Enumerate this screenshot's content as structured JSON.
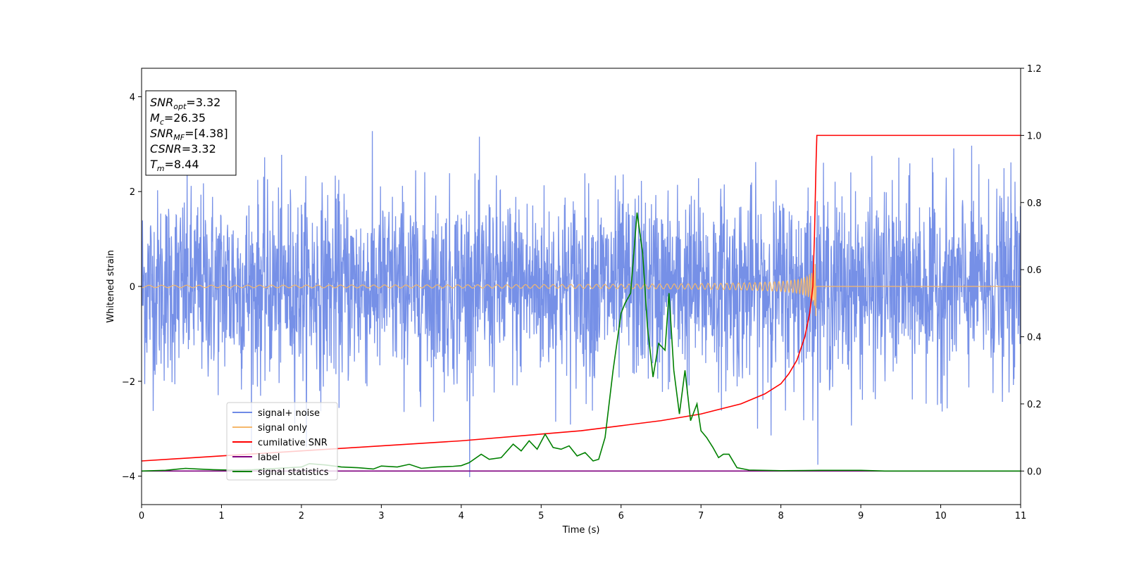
{
  "chart_data": {
    "type": "line",
    "xlabel": "Time (s)",
    "ylabel": "Whitened strain",
    "xlim": [
      0,
      11
    ],
    "ylim_left": [
      -4.6,
      4.6
    ],
    "ylim_right": [
      -0.1,
      1.2
    ],
    "x_ticks": [
      "0",
      "1",
      "2",
      "3",
      "4",
      "5",
      "6",
      "7",
      "8",
      "9",
      "10",
      "11"
    ],
    "y_ticks_left": [
      "4",
      "2",
      "0",
      "−2",
      "−4"
    ],
    "y_ticks_right": [
      "1.2",
      "1.0",
      "0.8",
      "0.6",
      "0.4",
      "0.2",
      "0.0"
    ],
    "grid": false,
    "legend_position": "lower-left",
    "annotation": [
      {
        "main": "SNR",
        "sub": "opt",
        "value": "=3.32"
      },
      {
        "main": "M",
        "sub": "c",
        "value": "=26.35"
      },
      {
        "main": "SNR",
        "sub": "MF",
        "value": "=[4.38]"
      },
      {
        "main": "CSNR",
        "sub": "",
        "value": "=3.32"
      },
      {
        "main": "T",
        "sub": "m",
        "value": "=8.44"
      }
    ],
    "series": [
      {
        "name": "signal+ noise",
        "color": "#6f8ae6",
        "axis": "left",
        "kind": "noise",
        "std": 1.0,
        "range_min": -4.15,
        "range_max": 4.18
      },
      {
        "name": "signal only",
        "color": "#f5b86b",
        "axis": "left",
        "kind": "chirp",
        "merger_time": 8.44,
        "peak_amplitude": 0.72
      },
      {
        "name": "cumilative SNR",
        "color": "#ff0000",
        "axis": "right",
        "x": [
          0,
          1,
          2,
          3,
          4,
          5,
          5.5,
          6,
          6.5,
          7,
          7.5,
          7.8,
          8.0,
          8.1,
          8.2,
          8.3,
          8.36,
          8.4,
          8.42,
          8.44,
          8.45,
          11
        ],
        "y": [
          0.03,
          0.045,
          0.06,
          0.075,
          0.09,
          0.11,
          0.12,
          0.135,
          0.15,
          0.17,
          0.2,
          0.23,
          0.26,
          0.29,
          0.33,
          0.4,
          0.47,
          0.55,
          0.7,
          0.92,
          1.0,
          1.0
        ]
      },
      {
        "name": "label",
        "color": "#800080",
        "axis": "right",
        "x": [
          0,
          11
        ],
        "y": [
          0,
          0
        ]
      },
      {
        "name": "signal statistics",
        "color": "#008000",
        "axis": "right",
        "x": [
          0,
          0.3,
          0.55,
          0.7,
          0.9,
          1.1,
          1.4,
          1.7,
          2.0,
          2.1,
          2.3,
          2.5,
          2.7,
          2.9,
          3.0,
          3.2,
          3.35,
          3.5,
          3.7,
          3.9,
          4.0,
          4.1,
          4.25,
          4.35,
          4.5,
          4.65,
          4.75,
          4.85,
          4.95,
          5.05,
          5.15,
          5.25,
          5.35,
          5.45,
          5.55,
          5.65,
          5.72,
          5.8,
          5.9,
          6.0,
          6.05,
          6.12,
          6.2,
          6.27,
          6.33,
          6.4,
          6.47,
          6.55,
          6.6,
          6.66,
          6.73,
          6.8,
          6.87,
          6.95,
          7.0,
          7.07,
          7.15,
          7.22,
          7.28,
          7.35,
          7.45,
          7.6,
          8.0,
          8.5,
          9.0,
          9.3,
          11
        ],
        "y": [
          0.0,
          0.002,
          0.008,
          0.006,
          0.004,
          0.003,
          0.004,
          0.008,
          0.012,
          0.022,
          0.018,
          0.012,
          0.01,
          0.006,
          0.015,
          0.012,
          0.02,
          0.008,
          0.012,
          0.014,
          0.016,
          0.025,
          0.05,
          0.035,
          0.04,
          0.08,
          0.06,
          0.09,
          0.065,
          0.11,
          0.07,
          0.065,
          0.075,
          0.045,
          0.055,
          0.03,
          0.035,
          0.1,
          0.3,
          0.47,
          0.5,
          0.53,
          0.77,
          0.65,
          0.43,
          0.28,
          0.38,
          0.36,
          0.53,
          0.3,
          0.17,
          0.3,
          0.15,
          0.2,
          0.12,
          0.1,
          0.07,
          0.04,
          0.05,
          0.05,
          0.01,
          0.003,
          0.001,
          0.002,
          0.002,
          0.0,
          0.0
        ]
      }
    ]
  }
}
